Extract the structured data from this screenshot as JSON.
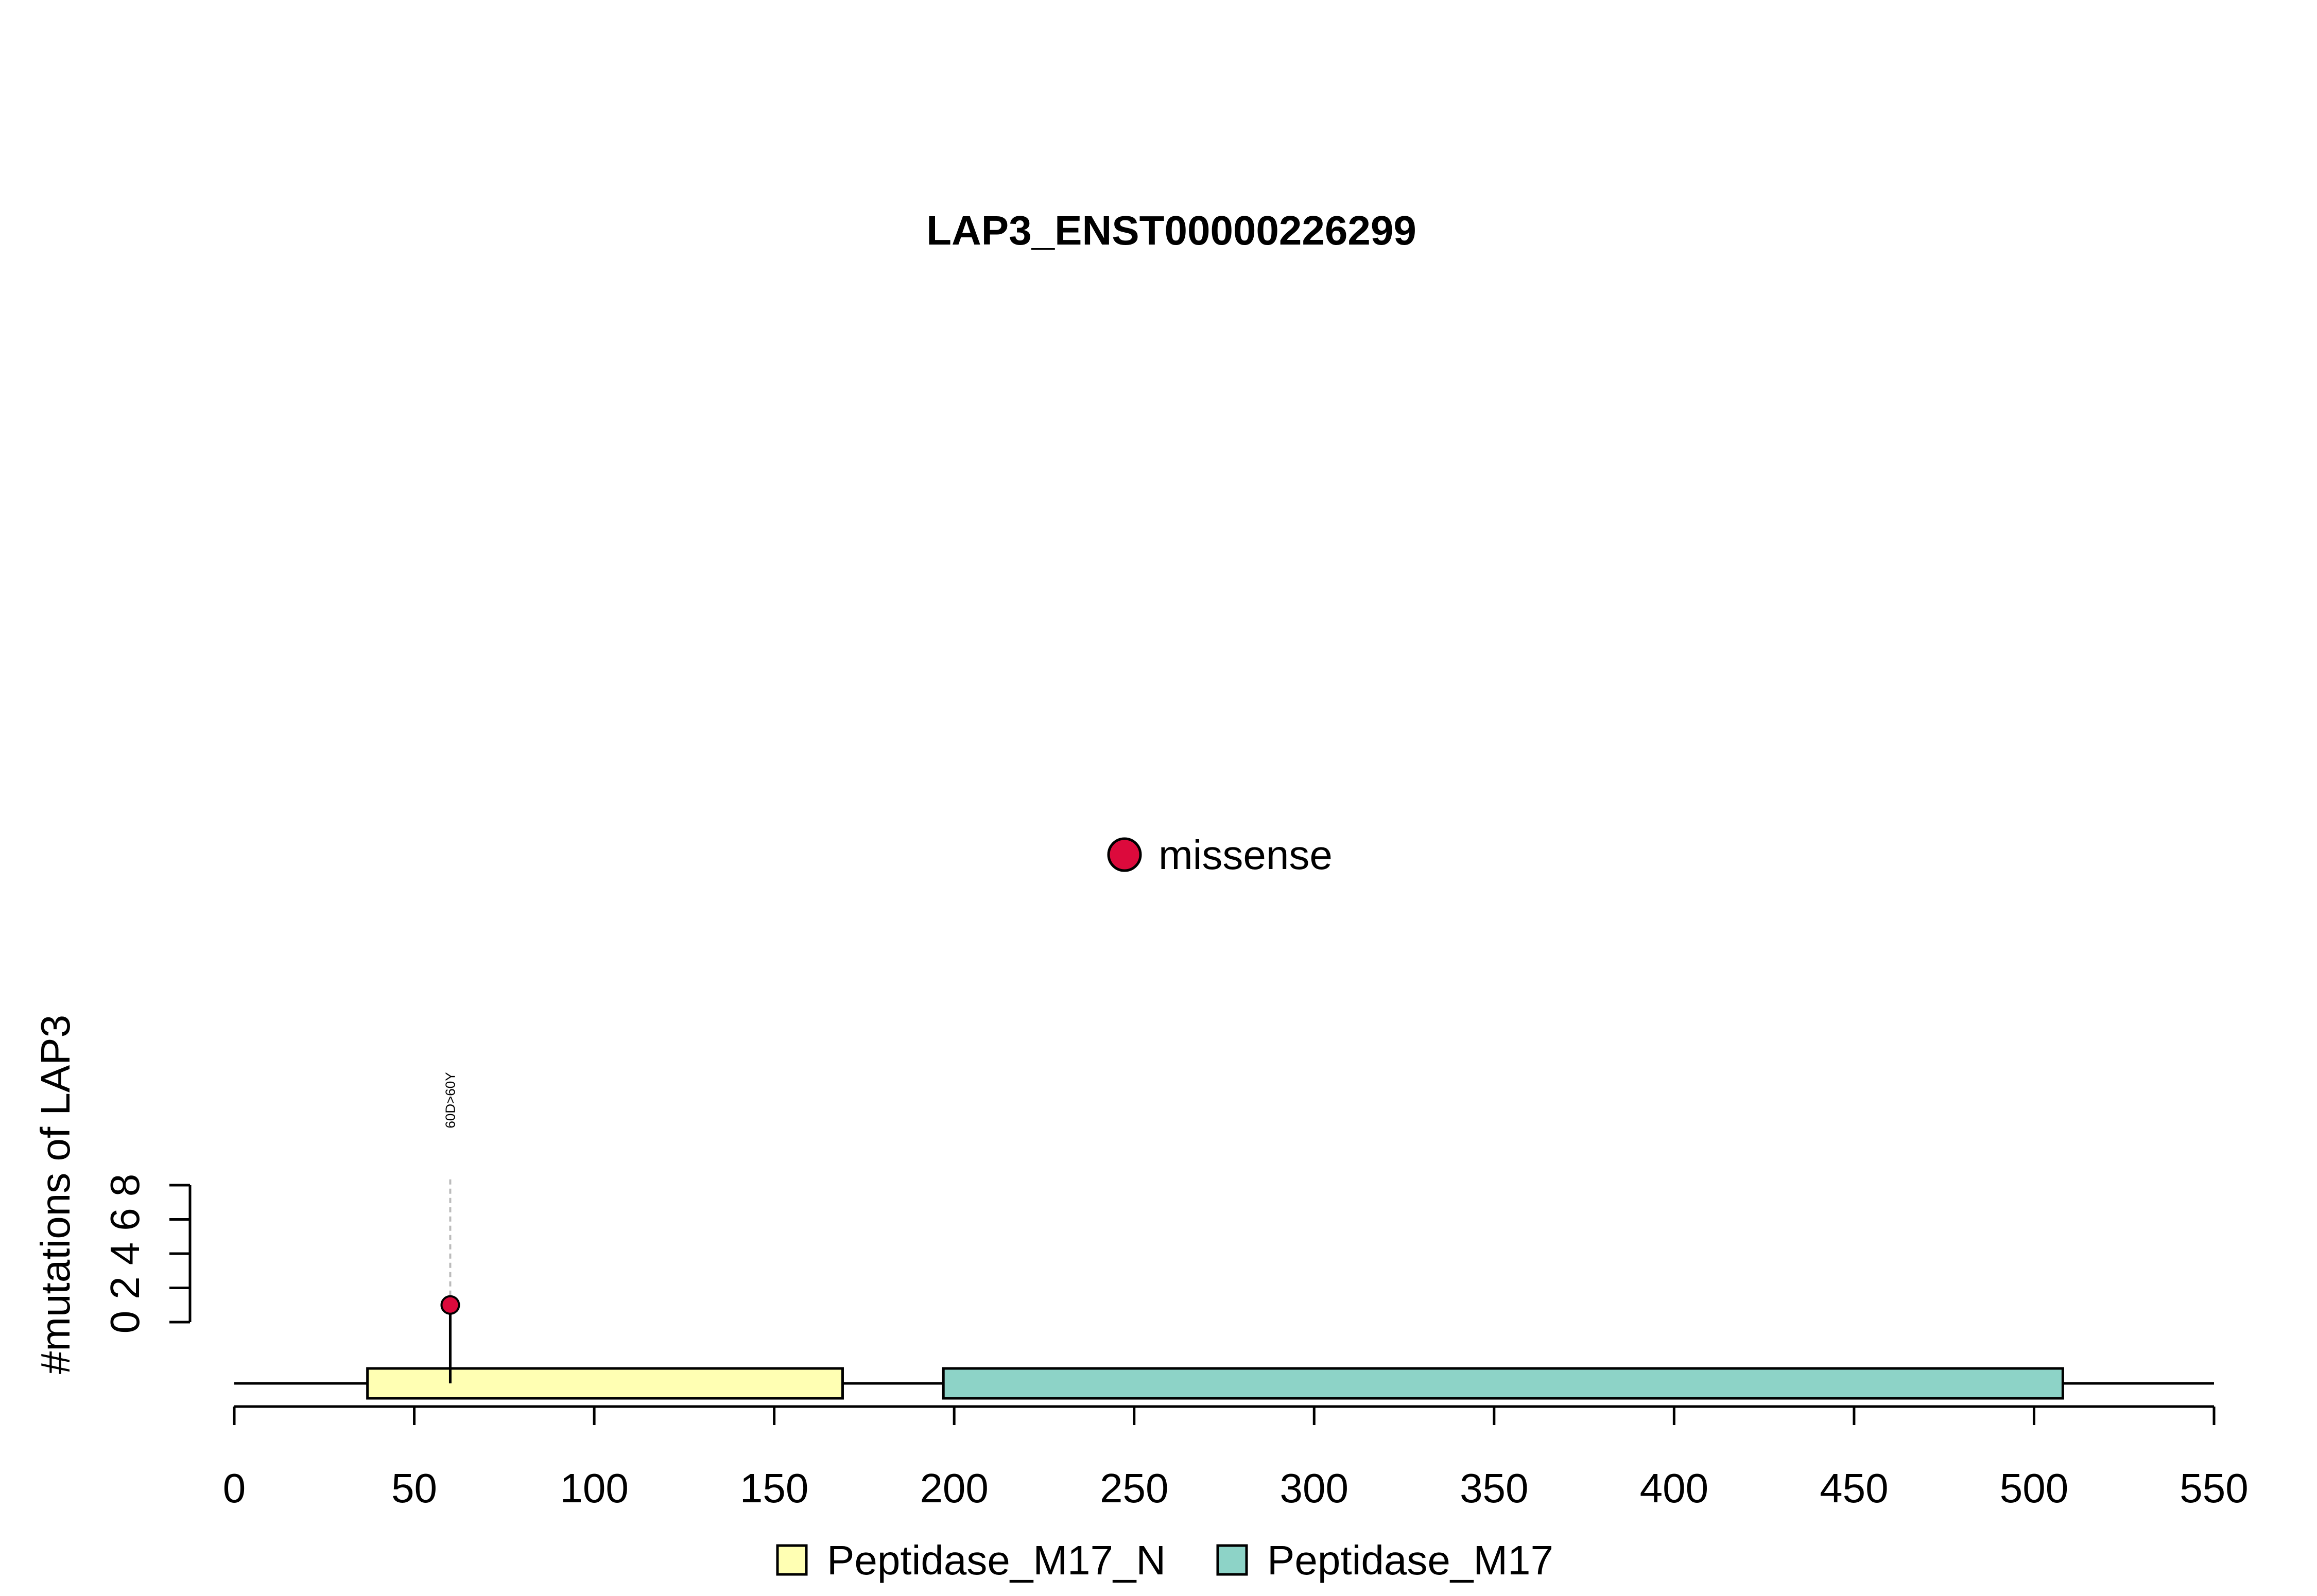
{
  "chart_data": {
    "type": "lollipop",
    "title": "LAP3_ENST00000226299",
    "ylabel": "#mutations of LAP3",
    "xlim": [
      0,
      550
    ],
    "x_ticks": [
      0,
      50,
      100,
      150,
      200,
      250,
      300,
      350,
      400,
      450,
      500,
      550
    ],
    "ylim": [
      0,
      8
    ],
    "y_ticks": [
      0,
      2,
      4,
      6,
      8
    ],
    "protein_length": 550,
    "domains": [
      {
        "name": "Peptidase_M17_N",
        "start": 37,
        "end": 169,
        "color": "#FFFFB3"
      },
      {
        "name": "Peptidase_M17",
        "start": 197,
        "end": 508,
        "color": "#8DD3C7"
      }
    ],
    "mutations": [
      {
        "position": 60,
        "count": 1,
        "type": "missense",
        "label": "60D>60Y",
        "color": "#DC0A3C"
      }
    ],
    "mutation_legend": [
      {
        "name": "missense",
        "color": "#DC0A3C"
      }
    ],
    "domain_legend": [
      {
        "name": "Peptidase_M17_N",
        "color": "#FFFFB3"
      },
      {
        "name": "Peptidase_M17",
        "color": "#8DD3C7"
      }
    ]
  }
}
